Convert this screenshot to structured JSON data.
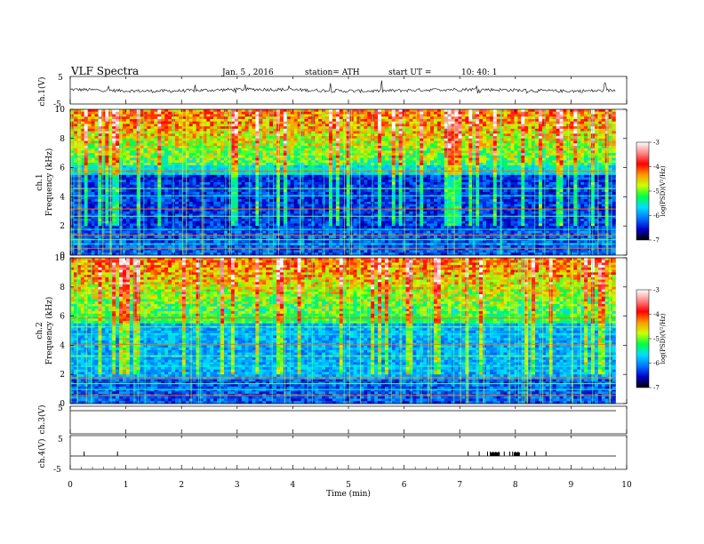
{
  "header": {
    "title": "VLF  Spectra",
    "date": "Jan. 5  , 2016",
    "station": "station= ATH",
    "start_label": "start  UT  =",
    "start_time": "10: 40: 1"
  },
  "chart_data": [
    {
      "type": "line",
      "panel": "ch1-waveform",
      "ylabel": "ch.1(V)",
      "yticks": [
        "5",
        "-5"
      ],
      "ylim": [
        -5,
        5
      ],
      "color": "#000000"
    },
    {
      "type": "heatmap",
      "panel": "ch1-spectrogram",
      "ylabel_line1": "ch.1",
      "ylabel_line2": "Frequency  (kHz)",
      "ylim": [
        0,
        10
      ],
      "yticks": [
        "0",
        "2",
        "4",
        "6",
        "8",
        "10"
      ],
      "colorbar": {
        "label": "log(PSD)(V²/Hz)",
        "range": [
          -7,
          -3
        ],
        "ticks": [
          "-3",
          "-4",
          "-5",
          "-6",
          "-7"
        ],
        "colors": [
          "#000000",
          "#0000cc",
          "#0077ff",
          "#00ddff",
          "#00ff44",
          "#ccff00",
          "#ff9900",
          "#ff0000",
          "#ff8888",
          "#ffffff"
        ]
      }
    },
    {
      "type": "heatmap",
      "panel": "ch2-spectrogram",
      "ylabel_line1": "ch.2",
      "ylabel_line2": "Frequency  (kHz)",
      "ylim": [
        0,
        10
      ],
      "yticks": [
        "0",
        "2",
        "4",
        "6",
        "8",
        "10"
      ],
      "colorbar": {
        "label": "log(PSD)(V²/Hz)",
        "range": [
          -7,
          -3
        ],
        "ticks": [
          "-3",
          "-4",
          "-5",
          "-6",
          "-7"
        ],
        "colors": [
          "#000000",
          "#0000cc",
          "#0077ff",
          "#00ddff",
          "#00ff44",
          "#ccff00",
          "#ff9900",
          "#ff0000",
          "#ff8888",
          "#ffffff"
        ]
      }
    },
    {
      "type": "line",
      "panel": "ch3-waveform",
      "ylabel": "ch.3(V)",
      "yticks": [
        "5",
        "-5"
      ],
      "ylim": [
        -5,
        5
      ]
    },
    {
      "type": "line",
      "panel": "ch4-waveform",
      "ylabel": "ch.4(V)",
      "yticks": [
        "5",
        "-5"
      ],
      "ylim": [
        -5,
        5
      ],
      "pulses_min": [
        0.25,
        0.85,
        7.15,
        7.35,
        7.5,
        7.55,
        7.6,
        7.65,
        7.7,
        7.8,
        7.9,
        7.95,
        8.0,
        8.05,
        8.2,
        8.35,
        8.55
      ],
      "bursts_min": [
        [
          7.55,
          7.72
        ],
        [
          7.97,
          8.08
        ]
      ]
    }
  ],
  "x_axis": {
    "label": "Time  (min)",
    "ticks": [
      "0",
      "1",
      "2",
      "3",
      "4",
      "5",
      "6",
      "7",
      "8",
      "9",
      "10"
    ],
    "range": [
      0,
      10
    ],
    "data_end": 9.8
  }
}
